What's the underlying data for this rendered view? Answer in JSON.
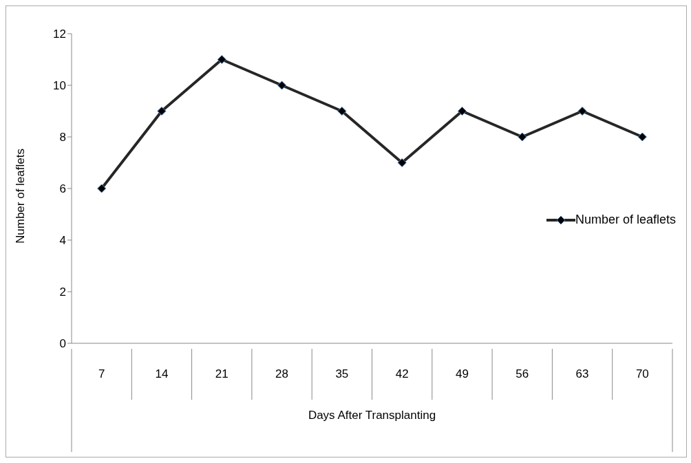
{
  "chart_data": {
    "type": "line",
    "xlabel": "Days After Transplanting",
    "ylabel": "Number of leaflets",
    "categories": [
      "7",
      "14",
      "21",
      "28",
      "35",
      "42",
      "49",
      "56",
      "63",
      "70"
    ],
    "series": [
      {
        "name": "Number of leaflets",
        "color": "#262626",
        "values": [
          6,
          9,
          11,
          10,
          9,
          7,
          9,
          8,
          9,
          8
        ]
      }
    ],
    "ylim": [
      0,
      12
    ],
    "yticks": [
      0,
      2,
      4,
      6,
      8,
      10,
      12
    ],
    "grid": false,
    "legend": "right",
    "marker": "diamond",
    "line_style": "solid"
  }
}
